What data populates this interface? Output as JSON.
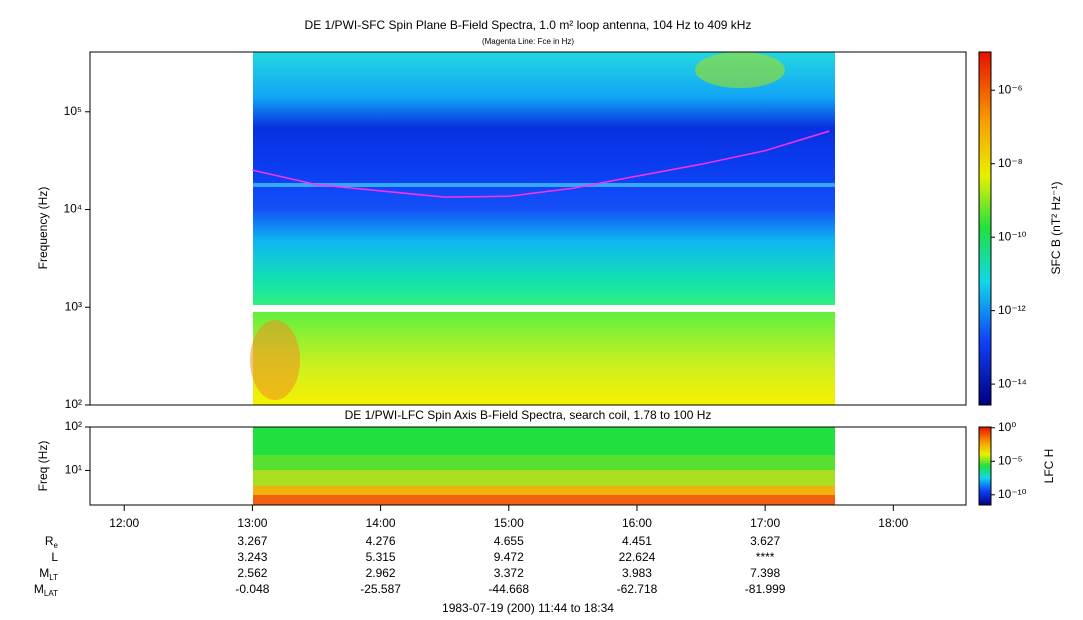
{
  "chart_data": {
    "type": "spectrogram",
    "xlim": [
      11.733,
      18.567
    ],
    "xticks": [
      {
        "value": 12,
        "label": "12:00"
      },
      {
        "value": 13,
        "label": "13:00"
      },
      {
        "value": 14,
        "label": "14:00"
      },
      {
        "value": 15,
        "label": "15:00"
      },
      {
        "value": 16,
        "label": "16:00"
      },
      {
        "value": 17,
        "label": "17:00"
      },
      {
        "value": 18,
        "label": "18:00"
      }
    ],
    "panels": [
      {
        "title": "DE 1/PWI-SFC  Spin Plane B-Field Spectra, 1.0 m² loop antenna, 104 Hz to 409 kHz",
        "subtitle": "(Magenta Line: Fce in Hz)",
        "ylabel": "Frequency (Hz)",
        "log": true,
        "ylim": [
          100,
          409000
        ],
        "yticks": [
          {
            "value": 100,
            "label": "10²"
          },
          {
            "value": 1000,
            "label": "10³"
          },
          {
            "value": 10000,
            "label": "10⁴"
          },
          {
            "value": 100000,
            "label": "10⁵"
          }
        ],
        "colorbar_label": "SFC B (nT² Hz⁻¹)",
        "clim": [
          2.7e-15,
          1.1e-05
        ],
        "cticks": [
          {
            "value": 1e-14,
            "label": "10⁻¹⁴"
          },
          {
            "value": 1e-12,
            "label": "10⁻¹²"
          },
          {
            "value": 1e-10,
            "label": "10⁻¹⁰"
          },
          {
            "value": 1e-08,
            "label": "10⁻⁸"
          },
          {
            "value": 1e-06,
            "label": "10⁻⁶"
          }
        ],
        "series": [
          {
            "color": "#ff30ff",
            "x": [
              13,
              13.5,
              14,
              14.5,
              15,
              15.5,
              16,
              16.5,
              17,
              17.5
            ],
            "values": [
              25300,
              18000,
              15500,
              13400,
              13700,
              16500,
              22000,
              29000,
              40000,
              63500
            ]
          }
        ]
      },
      {
        "title": "DE 1/PWI-LFC  Spin Axis B-Field Spectra, search coil, 1.78 to 100 Hz",
        "ylabel": "Freq (Hz)",
        "log": true,
        "ylim": [
          1.6,
          100
        ],
        "yticks": [
          {
            "value": 10,
            "label": "10¹"
          },
          {
            "value": 100,
            "label": "10²"
          }
        ],
        "colorbar_label": "LFC H",
        "clim": [
          3e-12,
          1.3
        ],
        "cticks": [
          {
            "value": 1e-10,
            "label": "10⁻¹⁰"
          },
          {
            "value": 1e-05,
            "label": "10⁻⁵"
          },
          {
            "value": 1,
            "label": "10⁰"
          }
        ]
      }
    ],
    "ephemeris": [
      {
        "label": "R",
        "sub": "e",
        "values": [
          "3.267",
          "4.276",
          "4.655",
          "4.451",
          "3.627"
        ]
      },
      {
        "label": "L",
        "sub": "",
        "values": [
          "3.243",
          "5.315",
          "9.472",
          "22.624",
          "****"
        ]
      },
      {
        "label": "M",
        "sub": "LT",
        "values": [
          "2.562",
          "2.962",
          "3.372",
          "3.983",
          "7.398"
        ]
      },
      {
        "label": "M",
        "sub": "LAT",
        "values": [
          "-0.048",
          "-25.587",
          "-44.668",
          "-62.718",
          "-81.999"
        ]
      }
    ],
    "footer": "1983-07-19 (200) 11:44 to 18:34"
  }
}
